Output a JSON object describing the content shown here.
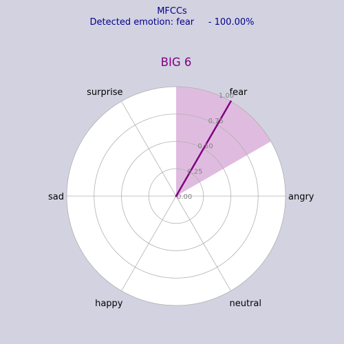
{
  "header": {
    "line1": "MFCCs",
    "line2": "Detected emotion: fear     - 100.00%"
  },
  "chart_data": {
    "type": "radar",
    "title": "BIG 6",
    "categories": [
      "angry",
      "fear",
      "surprise",
      "sad",
      "happy",
      "neutral"
    ],
    "values": [
      0,
      1.0,
      0,
      0,
      0,
      0
    ],
    "radial_ticks": [
      "0.00",
      "0.25",
      "0.50",
      "0.75",
      "1.00"
    ],
    "rlim": [
      0,
      1.0
    ],
    "grid": true,
    "colors": {
      "background": "#d3d2e1",
      "header_text": "#00008b",
      "title": "#800080",
      "sector_fill": "#dfbcdf",
      "line": "#800080",
      "grid": "#b0b0b0",
      "tick_text": "#808080"
    }
  }
}
